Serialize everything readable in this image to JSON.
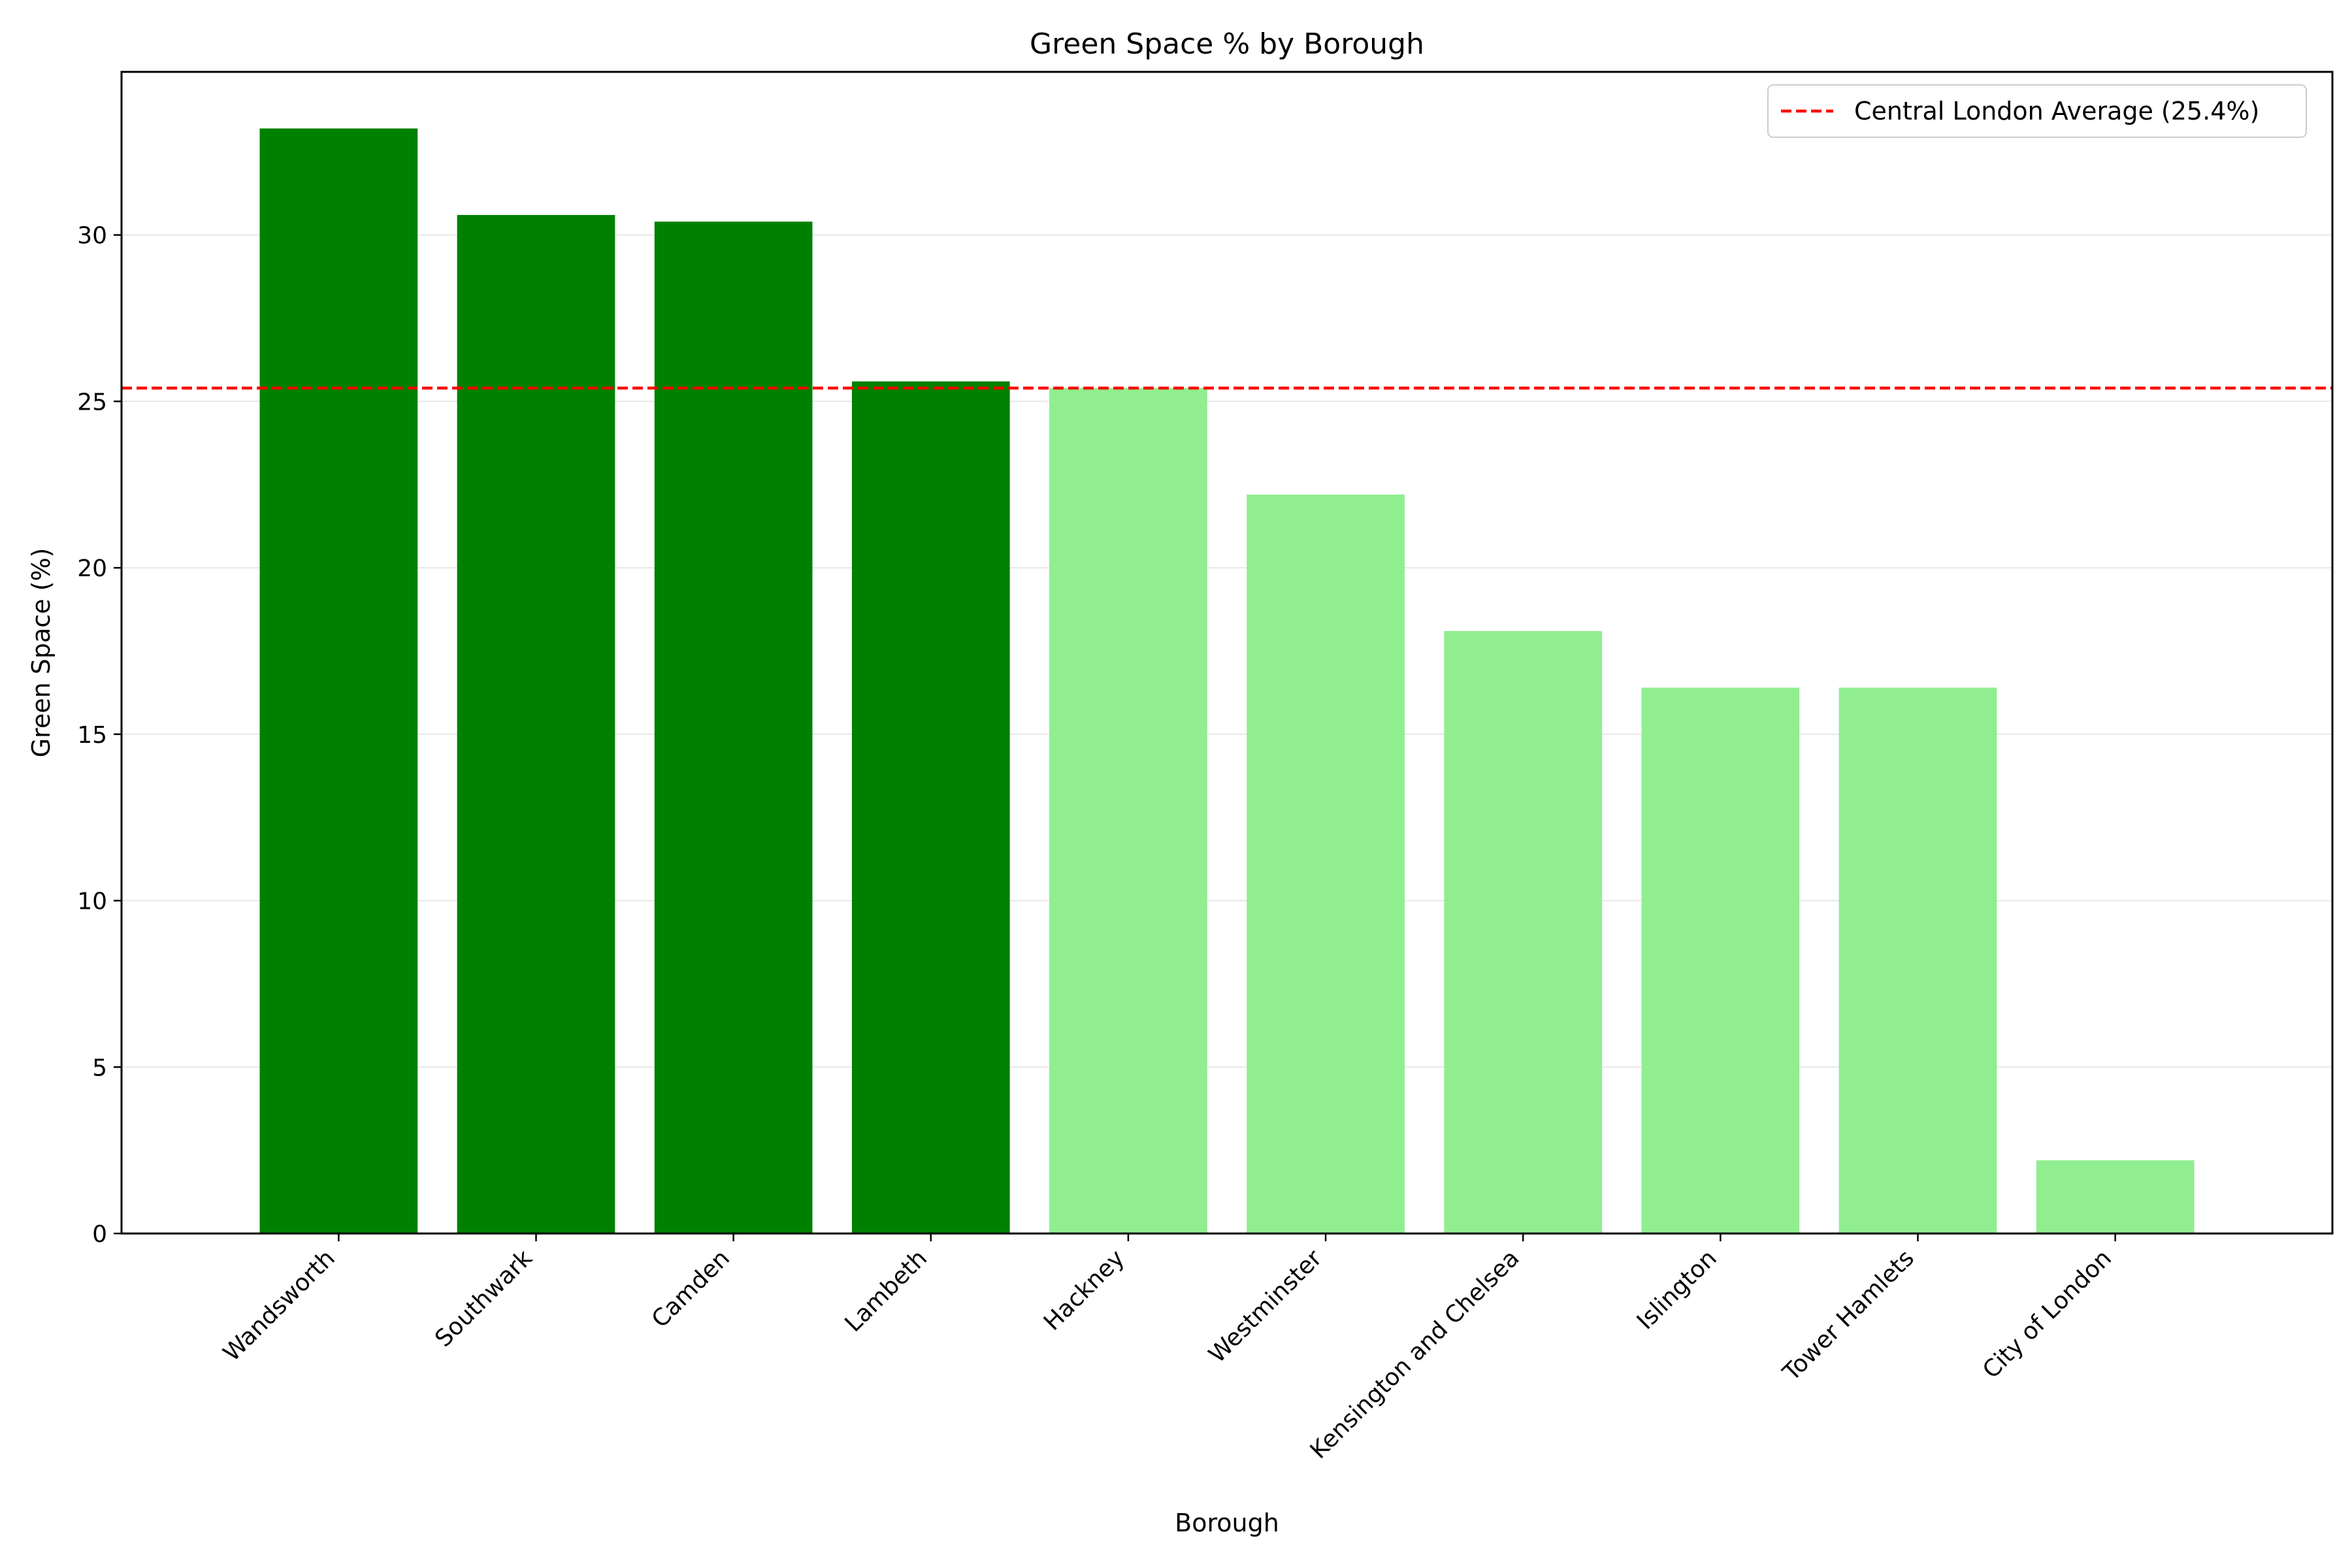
{
  "chart_data": {
    "type": "bar",
    "title": "Green Space % by Borough",
    "xlabel": "Borough",
    "ylabel": "Green Space (%)",
    "categories": [
      "Wandsworth",
      "Southwark",
      "Camden",
      "Lambeth",
      "Hackney",
      "Westminster",
      "Kensington and Chelsea",
      "Islington",
      "Tower Hamlets",
      "City of London"
    ],
    "values": [
      33.2,
      30.6,
      30.4,
      25.6,
      25.4,
      22.2,
      18.1,
      16.4,
      16.4,
      2.2
    ],
    "bar_colors": [
      "#008000",
      "#008000",
      "#008000",
      "#008000",
      "#90ee90",
      "#90ee90",
      "#90ee90",
      "#90ee90",
      "#90ee90",
      "#90ee90"
    ],
    "ylim": [
      0,
      34.9
    ],
    "yticks": [
      0,
      5,
      10,
      15,
      20,
      25,
      30
    ],
    "grid": "y",
    "reference_line": {
      "value": 25.4,
      "label": "Central London Average (25.4%)",
      "color": "#ff0000",
      "style": "dashed"
    },
    "legend_position": "top-right"
  }
}
